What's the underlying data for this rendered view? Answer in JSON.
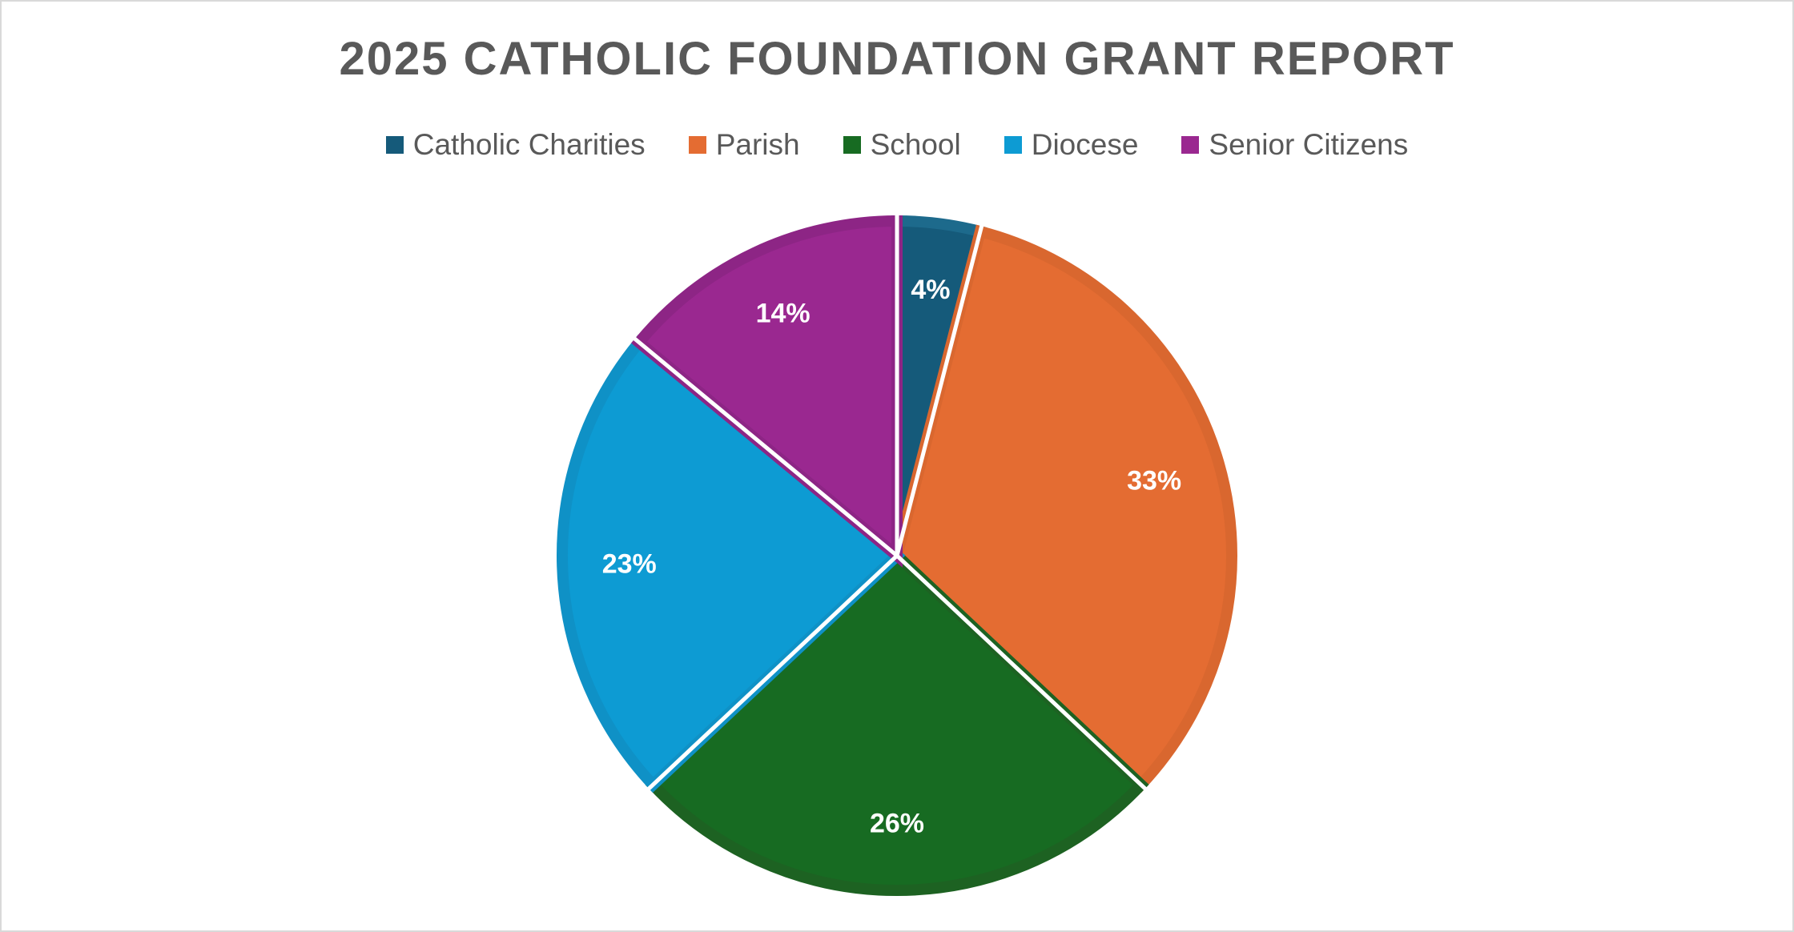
{
  "chart_data": {
    "type": "pie",
    "title": "2025 CATHOLIC FOUNDATION GRANT REPORT",
    "categories": [
      "Catholic Charities",
      "Parish",
      "School",
      "Diocese",
      "Senior Citizens"
    ],
    "values": [
      4,
      33,
      26,
      23,
      14
    ],
    "labels": [
      "4%",
      "33%",
      "26%",
      "23%",
      "14%"
    ],
    "colors": [
      "#155a7a",
      "#e46c32",
      "#176b22",
      "#0d9bd3",
      "#9a2890"
    ],
    "border_colors": [
      "#1d6a8c",
      "#d9672f",
      "#1d6222",
      "#0f91c6",
      "#8d2585"
    ],
    "legend_position": "top",
    "start_angle_deg": 0,
    "direction": "clockwise"
  }
}
